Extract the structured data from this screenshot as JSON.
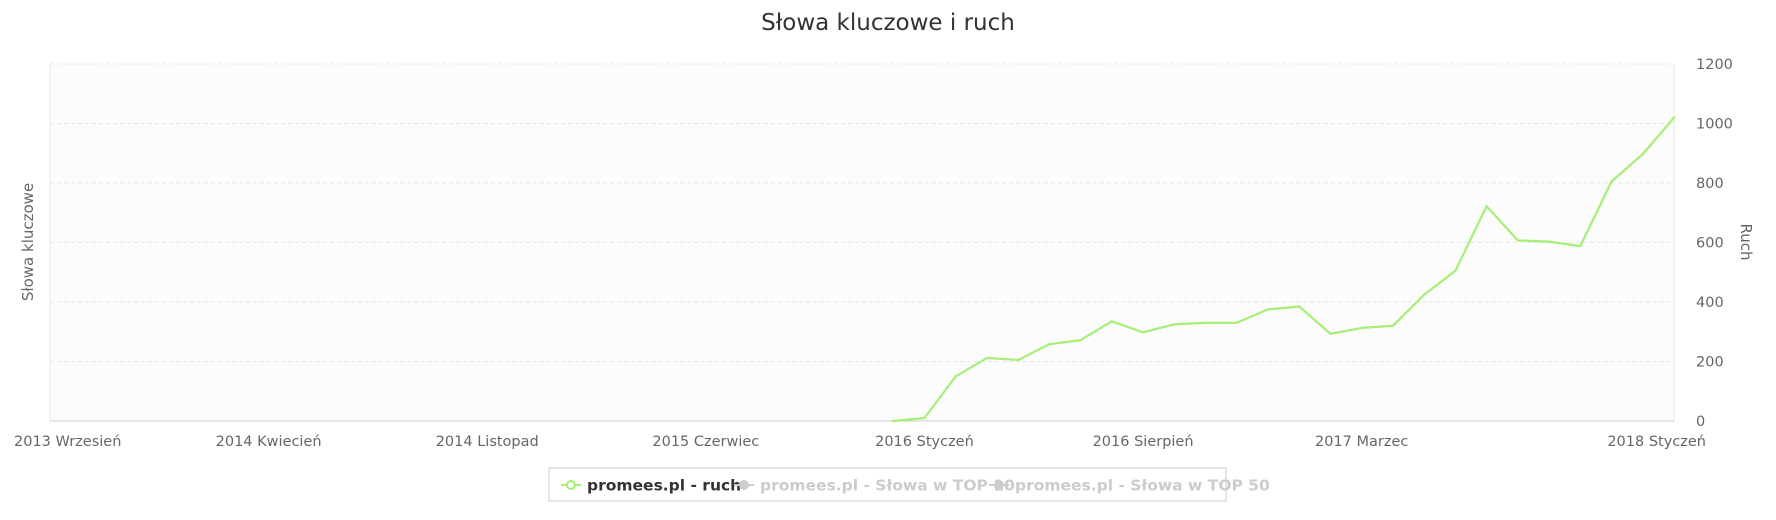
{
  "chart_data": {
    "type": "line",
    "title": "Słowa kluczowe i ruch",
    "ylabel_left": "Słowa kluczowe",
    "ylabel_right": "Ruch",
    "y_right_range": [
      0,
      1200
    ],
    "y_right_ticks": [
      "0",
      "200",
      "400",
      "600",
      "800",
      "1000",
      "1200"
    ],
    "grid": true,
    "x_range": [
      "2013-09",
      "2018-01"
    ],
    "x_tick_labels": [
      {
        "date": "2013-09",
        "label": "2013 Wrzesień"
      },
      {
        "date": "2014-04",
        "label": "2014 Kwiecień"
      },
      {
        "date": "2014-11",
        "label": "2014 Listopad"
      },
      {
        "date": "2015-06",
        "label": "2015 Czerwiec"
      },
      {
        "date": "2016-01",
        "label": "2016 Styczeń"
      },
      {
        "date": "2016-08",
        "label": "2016 Sierpień"
      },
      {
        "date": "2017-03",
        "label": "2017 Marzec"
      },
      {
        "date": "2018-01",
        "label": "2018 Styczeń"
      }
    ],
    "legend_position": "bottom",
    "series": [
      {
        "name": "promees.pl - ruch",
        "color": "#a5ef74",
        "visible": true,
        "axis": "right",
        "points": [
          {
            "x": "2015-12",
            "y": 0
          },
          {
            "x": "2016-01",
            "y": 10
          },
          {
            "x": "2016-02",
            "y": 150
          },
          {
            "x": "2016-03",
            "y": 212
          },
          {
            "x": "2016-04",
            "y": 205
          },
          {
            "x": "2016-05",
            "y": 258
          },
          {
            "x": "2016-06",
            "y": 272
          },
          {
            "x": "2016-07",
            "y": 335
          },
          {
            "x": "2016-08",
            "y": 298
          },
          {
            "x": "2016-09",
            "y": 325
          },
          {
            "x": "2016-10",
            "y": 330
          },
          {
            "x": "2016-11",
            "y": 330
          },
          {
            "x": "2016-12",
            "y": 375
          },
          {
            "x": "2017-01",
            "y": 385
          },
          {
            "x": "2017-02",
            "y": 293
          },
          {
            "x": "2017-03",
            "y": 313
          },
          {
            "x": "2017-04",
            "y": 320
          },
          {
            "x": "2017-05",
            "y": 425
          },
          {
            "x": "2017-06",
            "y": 505
          },
          {
            "x": "2017-07",
            "y": 722
          },
          {
            "x": "2017-08",
            "y": 607
          },
          {
            "x": "2017-09",
            "y": 603
          },
          {
            "x": "2017-10",
            "y": 588
          },
          {
            "x": "2017-11",
            "y": 805
          },
          {
            "x": "2017-12",
            "y": 897
          },
          {
            "x": "2018-01",
            "y": 1020
          }
        ]
      },
      {
        "name": "promees.pl - Słowa w TOP 10",
        "color": "#cccccc",
        "visible": false,
        "axis": "left",
        "points": []
      },
      {
        "name": "promees.pl - Słowa w TOP 50",
        "color": "#cccccc",
        "visible": false,
        "axis": "left",
        "points": []
      }
    ]
  }
}
